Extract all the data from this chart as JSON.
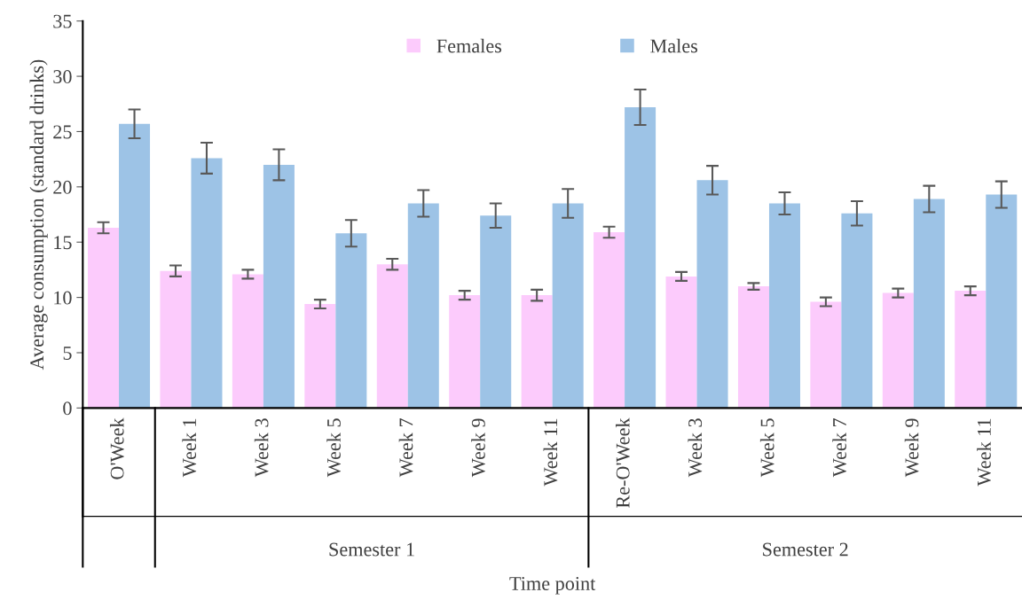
{
  "chart_data": {
    "type": "bar",
    "xlabel": "Time point",
    "ylabel": "Average consumption (standard drinks)",
    "categories": [
      "O'Week",
      "Week 1",
      "Week 3",
      "Week 5",
      "Week 7",
      "Week 9",
      "Week 11",
      "Re-O'Week",
      "Week 3",
      "Week 5",
      "Week 7",
      "Week 9",
      "Week 11"
    ],
    "series": [
      {
        "name": "Females",
        "color": "#fccbfc",
        "values": [
          16.3,
          12.4,
          12.1,
          9.4,
          13.0,
          10.2,
          10.2,
          15.9,
          11.9,
          11.0,
          9.6,
          10.4,
          10.6
        ],
        "errors": [
          0.5,
          0.5,
          0.4,
          0.4,
          0.5,
          0.4,
          0.5,
          0.5,
          0.4,
          0.3,
          0.4,
          0.4,
          0.4
        ]
      },
      {
        "name": "Males",
        "color": "#9dc3e6",
        "values": [
          25.7,
          22.6,
          22.0,
          15.8,
          18.5,
          17.4,
          18.5,
          27.2,
          20.6,
          18.5,
          17.6,
          18.9,
          19.3
        ],
        "errors": [
          1.3,
          1.4,
          1.4,
          1.2,
          1.2,
          1.1,
          1.3,
          1.6,
          1.3,
          1.0,
          1.1,
          1.2,
          1.2
        ]
      }
    ],
    "ylim": [
      0,
      35
    ],
    "yticks": [
      0,
      5,
      10,
      15,
      20,
      25,
      30,
      35
    ],
    "grid": false,
    "legend": "top",
    "annotations": [
      "Semester 1",
      "Semester 2"
    ]
  }
}
